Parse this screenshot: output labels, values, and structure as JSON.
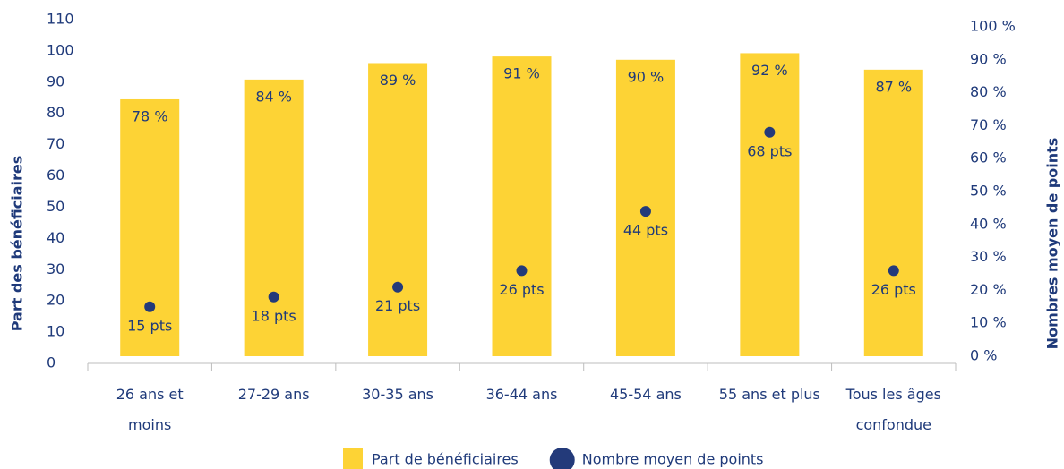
{
  "chart_data": {
    "type": "bar",
    "categories": [
      "26 ans et\nmoins",
      "27-29 ans",
      "30-35 ans",
      "36-44 ans",
      "45-54 ans",
      "55 ans et plus",
      "Tous les âges\nconfondue"
    ],
    "ylabel": "Part des bénéficiaires",
    "y2label": "Nombres moyen de points",
    "ylim": [
      0,
      110
    ],
    "yticks": [
      0,
      10,
      20,
      30,
      40,
      50,
      60,
      70,
      80,
      90,
      100,
      110
    ],
    "y2lim": [
      0,
      100
    ],
    "y2ticks": [
      {
        "value": 0,
        "label": "0 %"
      },
      {
        "value": 10,
        "label": "10 %"
      },
      {
        "value": 20,
        "label": "20 %"
      },
      {
        "value": 30,
        "label": "30 %"
      },
      {
        "value": 40,
        "label": "40 %"
      },
      {
        "value": 50,
        "label": "50 %"
      },
      {
        "value": 60,
        "label": "60 %"
      },
      {
        "value": 70,
        "label": "70 %"
      },
      {
        "value": 80,
        "label": "80 %"
      },
      {
        "value": 90,
        "label": "90 %"
      },
      {
        "value": 100,
        "label": "100 %"
      }
    ],
    "legend": "bottom",
    "series": [
      {
        "name": "Part de bénéficiaires",
        "type": "bar",
        "axis": "y2",
        "color": "#fdd335",
        "values": [
          78,
          84,
          89,
          91,
          90,
          92,
          87
        ],
        "value_labels": [
          "78 %",
          "84 %",
          "89 %",
          "91 %",
          "90 %",
          "92 %",
          "87 %"
        ]
      },
      {
        "name": "Nombre moyen de points",
        "type": "scatter",
        "axis": "y2",
        "color": "#233a7a",
        "values": [
          15,
          18,
          21,
          26,
          44,
          68,
          26
        ],
        "value_labels": [
          "15 pts",
          "18 pts",
          "21 pts",
          "26 pts",
          "44 pts",
          "68 pts",
          "26 pts"
        ]
      }
    ]
  }
}
